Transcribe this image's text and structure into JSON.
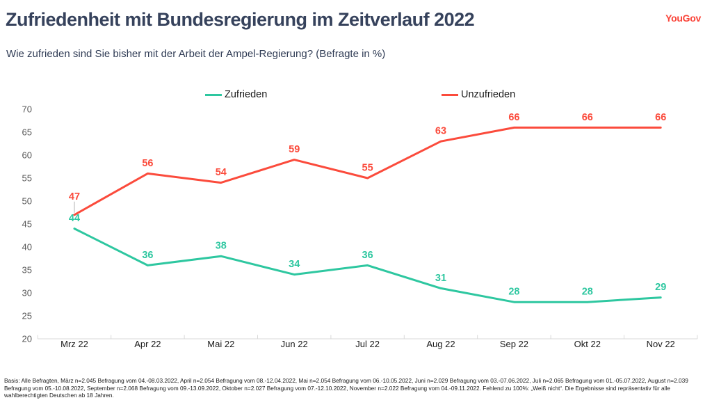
{
  "header": {
    "title": "Zufriedenheit mit Bundesregierung im Zeitverlauf 2022",
    "subtitle": "Wie zufrieden sind Sie bisher mit der Arbeit der Ampel-Regierung? (Befragte in %)",
    "logo": "YouGov"
  },
  "colors": {
    "title": "#36425c",
    "logo": "#fa4338",
    "axis_line": "#d9d9d9",
    "leader_line": "#b3b3b3",
    "y_tick_label": "#595959",
    "x_tick_label": "#1a1a1a",
    "zufrieden": "#2ec7a0",
    "unzufrieden": "#fb4b3c"
  },
  "chart_data": {
    "type": "line",
    "categories": [
      "Mrz 22",
      "Apr 22",
      "Mai 22",
      "Jun 22",
      "Jul 22",
      "Aug 22",
      "Sep 22",
      "Okt 22",
      "Nov 22"
    ],
    "series": [
      {
        "name": "Zufrieden",
        "color": "#2ec7a0",
        "values": [
          44,
          36,
          38,
          34,
          36,
          31,
          28,
          28,
          29
        ]
      },
      {
        "name": "Unzufrieden",
        "color": "#fb4b3c",
        "values": [
          47,
          56,
          54,
          59,
          55,
          63,
          66,
          66,
          66
        ]
      }
    ],
    "ylim": [
      20,
      70
    ],
    "ytick_step": 5,
    "grid": false,
    "legend_position": "top",
    "data_labels": true
  },
  "footer": {
    "text": "Basis: Alle Befragten, März n=2.045 Befragung vom 04.-08.03.2022, April n=2.054 Befragung vom 08.-12.04.2022, Mai n=2.054 Befragung vom 06.-10.05.2022, Juni n=2.029 Befragung vom 03.-07.06.2022, Juli n=2.065 Befragung vom 01.-05.07.2022, August n=2.039 Befragung vom 05.-10.08.2022, September n=2.068 Befragung vom 09.-13.09.2022, Oktober n=2.027 Befragung vom 07.-12.10.2022, November n=2.022 Befragung vom 04.-09.11.2022. Fehlend zu 100%: „Weiß nicht“. Die Ergebnisse sind repräsentativ für alle wahlberechtigten Deutschen ab 18 Jahren."
  }
}
